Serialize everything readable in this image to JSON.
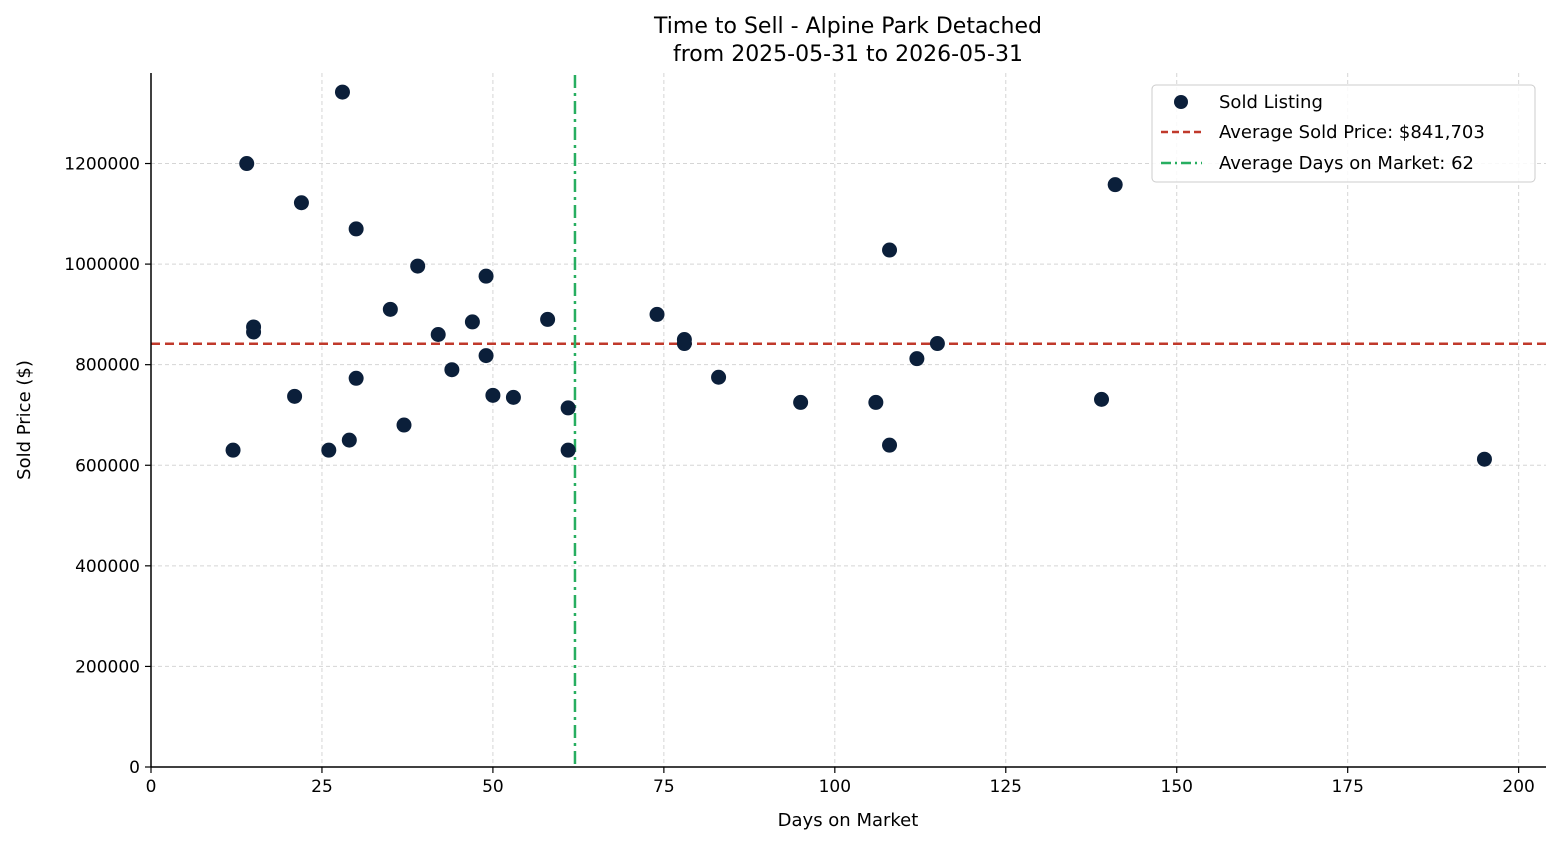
{
  "chart_data": {
    "type": "scatter",
    "title_line1": "Time to Sell - Alpine Park Detached",
    "title_line2": "from 2025-05-31 to 2026-05-31",
    "xlabel": "Days on Market",
    "ylabel": "Sold Price ($)",
    "xlim": [
      0,
      204
    ],
    "ylim": [
      0,
      1380000
    ],
    "xticks": [
      0,
      25,
      50,
      75,
      100,
      125,
      150,
      175,
      200
    ],
    "yticks": [
      0,
      200000,
      400000,
      600000,
      800000,
      1000000,
      1200000
    ],
    "grid": true,
    "legend_position": "top-right",
    "series": [
      {
        "name": "Sold Listing",
        "color": "#0b1f3a",
        "points": [
          {
            "x": 12,
            "y": 630000
          },
          {
            "x": 14,
            "y": 1200000
          },
          {
            "x": 15,
            "y": 875000
          },
          {
            "x": 15,
            "y": 865000
          },
          {
            "x": 21,
            "y": 737000
          },
          {
            "x": 22,
            "y": 1122000
          },
          {
            "x": 26,
            "y": 630000
          },
          {
            "x": 28,
            "y": 1342000
          },
          {
            "x": 29,
            "y": 650000
          },
          {
            "x": 30,
            "y": 1070000
          },
          {
            "x": 30,
            "y": 773000
          },
          {
            "x": 35,
            "y": 910000
          },
          {
            "x": 37,
            "y": 680000
          },
          {
            "x": 39,
            "y": 996000
          },
          {
            "x": 42,
            "y": 860000
          },
          {
            "x": 44,
            "y": 790000
          },
          {
            "x": 47,
            "y": 885000
          },
          {
            "x": 49,
            "y": 976000
          },
          {
            "x": 49,
            "y": 818000
          },
          {
            "x": 50,
            "y": 739000
          },
          {
            "x": 53,
            "y": 735000
          },
          {
            "x": 58,
            "y": 890000
          },
          {
            "x": 61,
            "y": 714000
          },
          {
            "x": 61,
            "y": 630000
          },
          {
            "x": 74,
            "y": 900000
          },
          {
            "x": 78,
            "y": 850000
          },
          {
            "x": 78,
            "y": 842000
          },
          {
            "x": 83,
            "y": 775000
          },
          {
            "x": 95,
            "y": 725000
          },
          {
            "x": 106,
            "y": 725000
          },
          {
            "x": 108,
            "y": 1028000
          },
          {
            "x": 108,
            "y": 640000
          },
          {
            "x": 112,
            "y": 812000
          },
          {
            "x": 115,
            "y": 842000
          },
          {
            "x": 139,
            "y": 731000
          },
          {
            "x": 141,
            "y": 1158000
          },
          {
            "x": 195,
            "y": 612000
          }
        ]
      }
    ],
    "reference_lines": [
      {
        "orientation": "horizontal",
        "value": 841703,
        "label": "Average Sold Price: $841,703",
        "color": "#c0392b",
        "style": "dashed"
      },
      {
        "orientation": "vertical",
        "value": 62,
        "label": "Average Days on Market: 62",
        "color": "#27ae60",
        "style": "dashdot"
      }
    ]
  }
}
